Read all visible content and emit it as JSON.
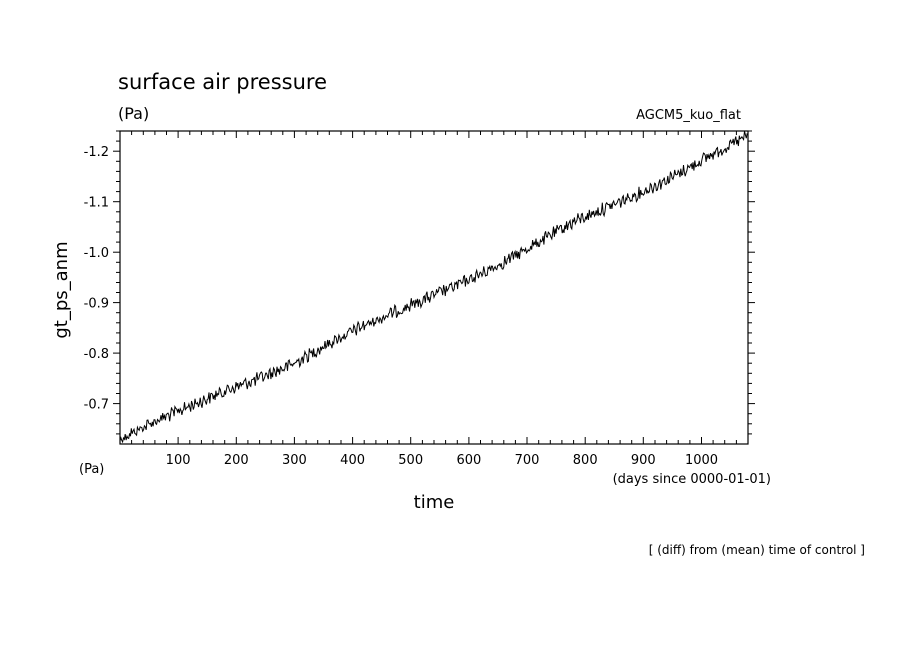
{
  "chart_data": {
    "type": "line",
    "title": "surface air pressure",
    "units_top": "(Pa)",
    "units_bottom": "(Pa)",
    "model_label": "AGCM5_kuo_flat",
    "xlabel": "time",
    "xunits": "(days since 0000-01-01)",
    "ylabel": "gt_ps_anm",
    "footnote": "[ (diff) from (mean) time of control ]",
    "xlim": [
      0,
      1080
    ],
    "ylim": [
      -0.62,
      -1.24
    ],
    "x_ticks": [
      100,
      200,
      300,
      400,
      500,
      600,
      700,
      800,
      900,
      1000
    ],
    "x_tick_labels": [
      "100",
      "200",
      "300",
      "400",
      "500",
      "600",
      "700",
      "800",
      "900",
      "1000"
    ],
    "y_ticks": [
      -0.7,
      -0.8,
      -0.9,
      -1.0,
      -1.1,
      -1.2
    ],
    "y_tick_labels": [
      "-0.7",
      "-0.8",
      "-0.9",
      "-1.0",
      "-1.1",
      "-1.2"
    ],
    "grid": false,
    "series": [
      {
        "x": [
          0,
          60,
          120,
          180,
          240,
          300,
          360,
          420,
          480,
          540,
          600,
          660,
          720,
          780,
          840,
          900,
          960,
          1020,
          1080
        ],
        "y": [
          -0.63,
          -0.665,
          -0.695,
          -0.725,
          -0.75,
          -0.78,
          -0.82,
          -0.855,
          -0.885,
          -0.915,
          -0.945,
          -0.98,
          -1.02,
          -1.06,
          -1.09,
          -1.12,
          -1.155,
          -1.195,
          -1.23
        ]
      }
    ]
  }
}
